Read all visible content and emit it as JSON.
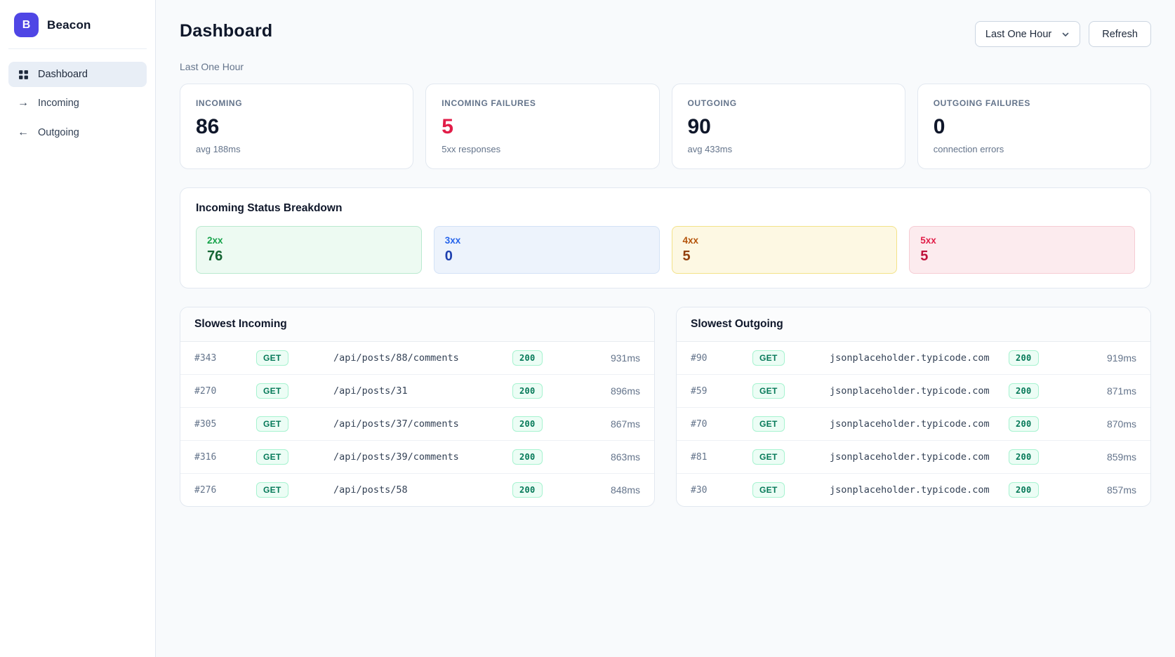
{
  "brand": {
    "logo_letter": "B",
    "name": "Beacon"
  },
  "sidebar": {
    "items": [
      {
        "label": "Dashboard",
        "icon": "grid-icon",
        "active": true
      },
      {
        "label": "Incoming",
        "icon": "arrow-right-icon",
        "active": false
      },
      {
        "label": "Outgoing",
        "icon": "arrow-left-icon",
        "active": false
      }
    ]
  },
  "header": {
    "title": "Dashboard",
    "range_select": "Last One Hour",
    "refresh_label": "Refresh"
  },
  "subtitle": "Last One Hour",
  "colors": {
    "accent": "#4f46e5",
    "danger": "#e11d48",
    "badge_green_bg": "#ecfdf5",
    "badge_green_border": "#a7f3d0",
    "badge_green_text": "#047857"
  },
  "stats": [
    {
      "label": "INCOMING",
      "value": "86",
      "sub": "avg 188ms",
      "value_color": "#0f172a"
    },
    {
      "label": "INCOMING FAILURES",
      "value": "5",
      "sub": "5xx responses",
      "value_color": "#e11d48"
    },
    {
      "label": "OUTGOING",
      "value": "90",
      "sub": "avg 433ms",
      "value_color": "#0f172a"
    },
    {
      "label": "OUTGOING FAILURES",
      "value": "0",
      "sub": "connection errors",
      "value_color": "#0f172a"
    }
  ],
  "breakdown": {
    "title": "Incoming Status Breakdown",
    "items": [
      {
        "label": "2xx",
        "value": "76",
        "bg": "#edfaf2",
        "border": "#b9e9cf",
        "label_color": "#16a34a",
        "value_color": "#166534"
      },
      {
        "label": "3xx",
        "value": "0",
        "bg": "#edf3fc",
        "border": "#d3e2f6",
        "label_color": "#2563eb",
        "value_color": "#1e40af"
      },
      {
        "label": "4xx",
        "value": "5",
        "bg": "#fdf8e3",
        "border": "#f3e289",
        "label_color": "#b45309",
        "value_color": "#92400e"
      },
      {
        "label": "5xx",
        "value": "5",
        "bg": "#fcebee",
        "border": "#f6ccd4",
        "label_color": "#e11d48",
        "value_color": "#be123c"
      }
    ]
  },
  "tables": [
    {
      "title": "Slowest Incoming",
      "rows": [
        {
          "id": "#343",
          "method": "GET",
          "target": "/api/posts/88/comments",
          "status": "200",
          "duration": "931ms"
        },
        {
          "id": "#270",
          "method": "GET",
          "target": "/api/posts/31",
          "status": "200",
          "duration": "896ms"
        },
        {
          "id": "#305",
          "method": "GET",
          "target": "/api/posts/37/comments",
          "status": "200",
          "duration": "867ms"
        },
        {
          "id": "#316",
          "method": "GET",
          "target": "/api/posts/39/comments",
          "status": "200",
          "duration": "863ms"
        },
        {
          "id": "#276",
          "method": "GET",
          "target": "/api/posts/58",
          "status": "200",
          "duration": "848ms"
        }
      ]
    },
    {
      "title": "Slowest Outgoing",
      "rows": [
        {
          "id": "#90",
          "method": "GET",
          "target": "jsonplaceholder.typicode.com",
          "status": "200",
          "duration": "919ms"
        },
        {
          "id": "#59",
          "method": "GET",
          "target": "jsonplaceholder.typicode.com",
          "status": "200",
          "duration": "871ms"
        },
        {
          "id": "#70",
          "method": "GET",
          "target": "jsonplaceholder.typicode.com",
          "status": "200",
          "duration": "870ms"
        },
        {
          "id": "#81",
          "method": "GET",
          "target": "jsonplaceholder.typicode.com",
          "status": "200",
          "duration": "859ms"
        },
        {
          "id": "#30",
          "method": "GET",
          "target": "jsonplaceholder.typicode.com",
          "status": "200",
          "duration": "857ms"
        }
      ]
    }
  ]
}
